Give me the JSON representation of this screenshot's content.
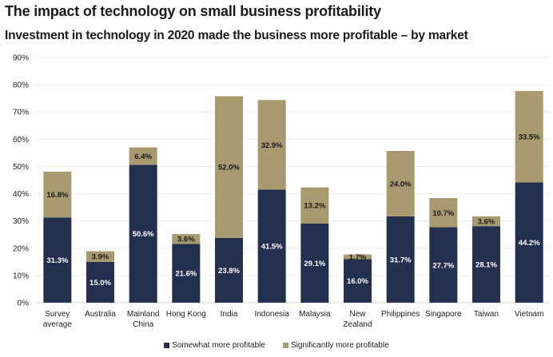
{
  "chart_data": {
    "type": "bar",
    "stacked": true,
    "title": "The impact of technology on small business profitability",
    "subtitle": "Investment in technology in 2020 made the business more profitable – by market",
    "xlabel": "",
    "ylabel": "",
    "ylim": [
      0,
      90
    ],
    "yticks": [
      "0%",
      "10%",
      "20%",
      "30%",
      "40%",
      "50%",
      "60%",
      "70%",
      "80%",
      "90%"
    ],
    "ytick_values": [
      0,
      10,
      20,
      30,
      40,
      50,
      60,
      70,
      80,
      90
    ],
    "grid": true,
    "legend_position": "bottom-center",
    "categories": [
      [
        "Survey",
        "average"
      ],
      [
        "Australia"
      ],
      [
        "Mainland",
        "China"
      ],
      [
        "Hong Kong"
      ],
      [
        "India"
      ],
      [
        "Indonesia"
      ],
      [
        "Malaysia"
      ],
      [
        "New",
        "Zealand"
      ],
      [
        "Philippines"
      ],
      [
        "Singapore"
      ],
      [
        "Taiwan"
      ],
      [
        "Vietnam"
      ]
    ],
    "series": [
      {
        "name": "Somewhat more profitable",
        "color": "#23304F",
        "label_color": "#ffffff",
        "values": [
          31.3,
          15.0,
          50.6,
          21.6,
          23.8,
          41.5,
          29.1,
          16.0,
          31.7,
          27.7,
          28.1,
          44.2
        ],
        "labels": [
          "31.3%",
          "15.0%",
          "50.6%",
          "21.6%",
          "23.8%",
          "41.5%",
          "29.1%",
          "16.0%",
          "31.7%",
          "27.7%",
          "28.1%",
          "44.2%"
        ]
      },
      {
        "name": "Significantly more profitable",
        "color": "#A89A6E",
        "label_color": "#1a1a1a",
        "values": [
          16.8,
          3.9,
          6.4,
          3.6,
          52.0,
          32.9,
          13.2,
          1.7,
          24.0,
          10.7,
          3.6,
          33.5
        ],
        "labels": [
          "16.8%",
          "3.9%",
          "6.4%",
          "3.6%",
          "52.0%",
          "32.9%",
          "13.2%",
          "1.7%",
          "24.0%",
          "10.7%",
          "3.6%",
          "33.5%"
        ]
      }
    ]
  }
}
